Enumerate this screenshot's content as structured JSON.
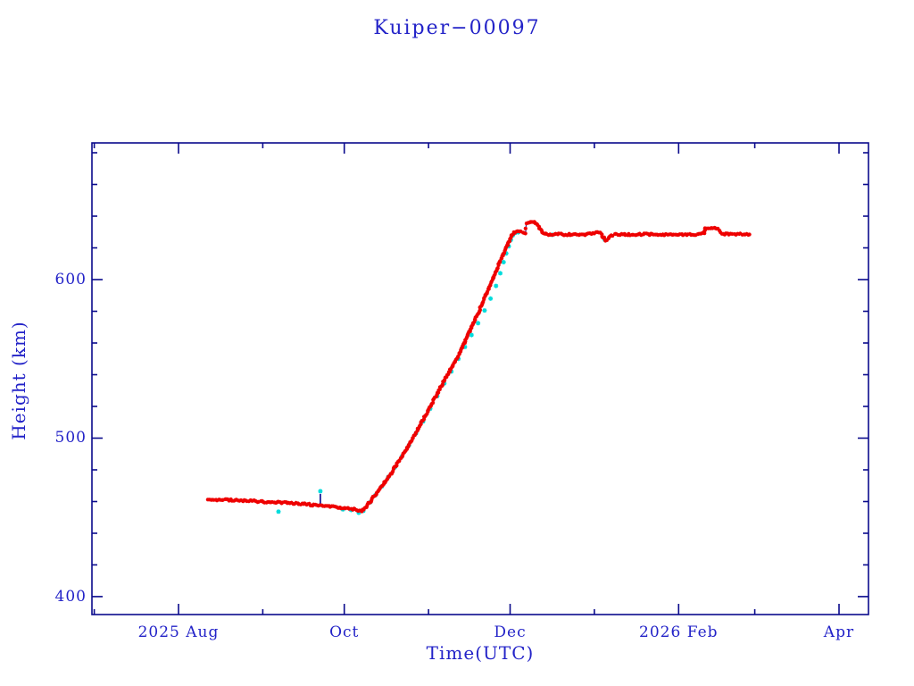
{
  "chart_data": {
    "type": "scatter",
    "title": "Kuiper−00097",
    "xlabel": "Time(UTC)",
    "ylabel": "Height (km)",
    "x_axis": {
      "unit": "days since 2025-08-01",
      "range": [
        -31.85,
        253.85
      ],
      "major_ticks": [
        {
          "day": 0,
          "label": "2025 Aug"
        },
        {
          "day": 61,
          "label": "Oct"
        },
        {
          "day": 122,
          "label": "Dec"
        },
        {
          "day": 184,
          "label": "2026 Feb"
        },
        {
          "day": 243,
          "label": "Apr"
        }
      ],
      "minor_tick_days": [
        -31,
        31,
        92,
        153,
        212
      ]
    },
    "y_axis": {
      "unit": "km",
      "range": [
        388.7,
        686.2
      ],
      "major_ticks": [
        400,
        500,
        600
      ],
      "minor_tick_step": 20
    },
    "series": [
      {
        "name": "primary-height-track",
        "color": "#ee0000",
        "marker": "asterisk",
        "anchors": [
          [
            10.8,
            461.2
          ],
          [
            16,
            461.0
          ],
          [
            22,
            460.7
          ],
          [
            28,
            460.2
          ],
          [
            34,
            459.7
          ],
          [
            40,
            459.2
          ],
          [
            46,
            458.4
          ],
          [
            52,
            457.5
          ],
          [
            57,
            456.6
          ],
          [
            61,
            455.9
          ],
          [
            64,
            455.2
          ],
          [
            66.5,
            454.5
          ],
          [
            67.3,
            454.2
          ],
          [
            69,
            456.5
          ],
          [
            71,
            461.0
          ],
          [
            73,
            465.5
          ],
          [
            75.5,
            471.0
          ],
          [
            78,
            477.0
          ],
          [
            80.5,
            484.0
          ],
          [
            83,
            491.0
          ],
          [
            85.5,
            498.0
          ],
          [
            88,
            505.5
          ],
          [
            90.5,
            513.0
          ],
          [
            93,
            521.0
          ],
          [
            95.5,
            529.0
          ],
          [
            98,
            537.0
          ],
          [
            100.5,
            544.5
          ],
          [
            103,
            552.0
          ],
          [
            105,
            559.5
          ],
          [
            107,
            567.0
          ],
          [
            109,
            574.5
          ],
          [
            111,
            582.0
          ],
          [
            113,
            590.0
          ],
          [
            115,
            598.0
          ],
          [
            117,
            606.0
          ],
          [
            118.5,
            612.0
          ],
          [
            120,
            618.0
          ],
          [
            121.2,
            623.0
          ],
          [
            122.3,
            627.0
          ],
          [
            123.2,
            629.3
          ],
          [
            124.5,
            630.2
          ],
          [
            126,
            630.2
          ],
          [
            127.2,
            629.4
          ],
          [
            127.7,
            629.0
          ],
          [
            127.9,
            635.6
          ],
          [
            128.6,
            636.2
          ],
          [
            129.5,
            636.5
          ],
          [
            130.5,
            636.4
          ],
          [
            131.5,
            635.7
          ],
          [
            132.3,
            634.0
          ],
          [
            133.2,
            631.3
          ],
          [
            134.2,
            629.2
          ],
          [
            135,
            628.6
          ],
          [
            137,
            628.4
          ],
          [
            140,
            628.6
          ],
          [
            143,
            628.4
          ],
          [
            146,
            628.6
          ],
          [
            149,
            628.5
          ],
          [
            151.5,
            628.8
          ],
          [
            153,
            629.6
          ],
          [
            154.2,
            630.2
          ],
          [
            155.3,
            629.2
          ],
          [
            156.3,
            626.8
          ],
          [
            157.2,
            624.9
          ],
          [
            158.2,
            625.8
          ],
          [
            159.2,
            627.8
          ],
          [
            160.5,
            628.5
          ],
          [
            164,
            628.5
          ],
          [
            168,
            628.4
          ],
          [
            172,
            628.6
          ],
          [
            176,
            628.5
          ],
          [
            180,
            628.4
          ],
          [
            184,
            628.6
          ],
          [
            188,
            628.5
          ],
          [
            191,
            628.6
          ],
          [
            193.4,
            628.8
          ],
          [
            193.7,
            632.2
          ],
          [
            195,
            632.6
          ],
          [
            196.5,
            632.5
          ],
          [
            198,
            632.3
          ],
          [
            199,
            631.2
          ],
          [
            199.8,
            629.3
          ],
          [
            200.5,
            628.8
          ],
          [
            202,
            628.6
          ],
          [
            205,
            628.7
          ],
          [
            208,
            628.5
          ],
          [
            210,
            628.6
          ]
        ]
      },
      {
        "name": "secondary-height-points",
        "color": "#00dcdc",
        "marker": "asterisk",
        "points": [
          [
            36.8,
            453.6
          ],
          [
            52.2,
            466.5
          ],
          [
            60.5,
            455.0
          ],
          [
            63.5,
            454.6
          ],
          [
            66.3,
            452.9
          ],
          [
            68.0,
            454.1
          ],
          [
            70.5,
            459.5
          ],
          [
            72.4,
            464.0
          ],
          [
            74.8,
            469.5
          ],
          [
            77.2,
            475.5
          ],
          [
            79.6,
            481.5
          ],
          [
            82.2,
            488.5
          ],
          [
            84.8,
            495.5
          ],
          [
            87.4,
            503.0
          ],
          [
            90.0,
            510.5
          ],
          [
            92.6,
            518.5
          ],
          [
            95.2,
            526.5
          ],
          [
            97.8,
            534.5
          ],
          [
            100.4,
            542.0
          ],
          [
            103.0,
            550.0
          ],
          [
            105.4,
            557.5
          ],
          [
            107.8,
            565.0
          ],
          [
            110.2,
            572.5
          ],
          [
            112.6,
            580.5
          ],
          [
            114.8,
            588.0
          ],
          [
            116.8,
            596.0
          ],
          [
            118.4,
            604.0
          ],
          [
            119.6,
            611.0
          ],
          [
            120.6,
            616.5
          ],
          [
            121.5,
            621.0
          ],
          [
            122.3,
            625.0
          ],
          [
            123.0,
            627.8
          ],
          [
            123.8,
            629.4
          ],
          [
            125.0,
            629.8
          ],
          [
            137.5,
            628.2
          ],
          [
            156.8,
            625.2
          ]
        ]
      }
    ],
    "error_bar": {
      "day": 52.2,
      "from_km": 458.5,
      "to_km": 464.8
    },
    "colors": {
      "text": "#2323c8",
      "axis": "#0a0a8c",
      "red_series": "#ee0000",
      "cyan_series": "#00dcdc",
      "connect_line": "#00008b",
      "background": "#ffffff"
    }
  }
}
